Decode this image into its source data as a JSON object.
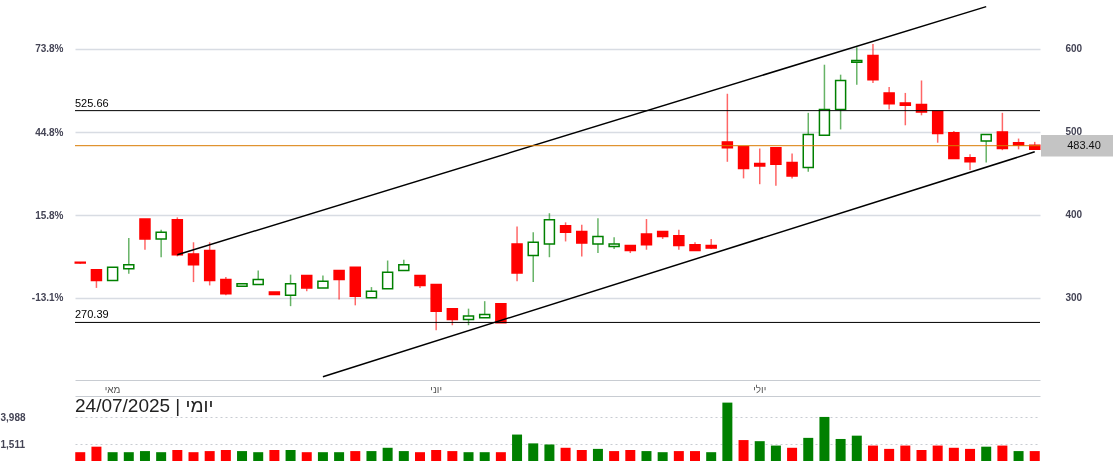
{
  "chart_data": [
    {
      "type": "candlestick",
      "categories": [
        null,
        null,
        "מאי",
        null,
        null,
        null,
        null,
        null,
        null,
        null,
        null,
        null,
        null,
        null,
        null,
        null,
        null,
        null,
        null,
        null,
        null,
        null,
        "יוני",
        null,
        null,
        null,
        null,
        null,
        null,
        null,
        null,
        null,
        null,
        null,
        null,
        null,
        null,
        null,
        null,
        null,
        null,
        null,
        "יולי",
        null,
        null,
        null,
        null,
        null,
        null,
        null,
        null,
        null,
        null,
        null,
        null,
        null,
        null,
        null,
        null,
        null
      ],
      "ohlc": [
        [
          343,
          343,
          341,
          342
        ],
        [
          334,
          334,
          312,
          321
        ],
        [
          321,
          337,
          321,
          337
        ],
        [
          335,
          372,
          329,
          340
        ],
        [
          395,
          395,
          358,
          371
        ],
        [
          371,
          382,
          349,
          379
        ],
        [
          394,
          397,
          350,
          352
        ],
        [
          353,
          367,
          319,
          340
        ],
        [
          357,
          367,
          315,
          321
        ],
        [
          322,
          325,
          303,
          305
        ],
        [
          314,
          317,
          314,
          317
        ],
        [
          316,
          333,
          316,
          322
        ],
        [
          307,
          307,
          304,
          304
        ],
        [
          303,
          328,
          290,
          317
        ],
        [
          327,
          327,
          308,
          312
        ],
        [
          312,
          327,
          312,
          320
        ],
        [
          333,
          333,
          298,
          322
        ],
        [
          337,
          337,
          291,
          302
        ],
        [
          300,
          313,
          300,
          308
        ],
        [
          311,
          345,
          311,
          331
        ],
        [
          333,
          346,
          333,
          340
        ],
        [
          327,
          327,
          312,
          315
        ],
        [
          316,
          316,
          261,
          284
        ],
        [
          287,
          287,
          267,
          274
        ],
        [
          274,
          287,
          267,
          278
        ],
        [
          276,
          296,
          276,
          280
        ],
        [
          293,
          293,
          270,
          270
        ],
        [
          365,
          386,
          320,
          330
        ],
        [
          351,
          379,
          319,
          367
        ],
        [
          365,
          402,
          349,
          394
        ],
        [
          387,
          391,
          368,
          379
        ],
        [
          380,
          388,
          350,
          366
        ],
        [
          365,
          396,
          354,
          374
        ],
        [
          362,
          373,
          359,
          365
        ],
        [
          363,
          363,
          354,
          357
        ],
        [
          377,
          395,
          358,
          364
        ],
        [
          380,
          380,
          371,
          374
        ],
        [
          375,
          382,
          358,
          363
        ],
        [
          364,
          367,
          357,
          357
        ],
        [
          363,
          371,
          359,
          360
        ],
        [
          488,
          546,
          464,
          481
        ],
        [
          482,
          482,
          444,
          456
        ],
        [
          462,
          480,
          437,
          459
        ],
        [
          481,
          481,
          435,
          461
        ],
        [
          463,
          474,
          444,
          447
        ],
        [
          457,
          523,
          452,
          497
        ],
        [
          496,
          581,
          496,
          527
        ],
        [
          527,
          569,
          503,
          562
        ],
        [
          584,
          602,
          557,
          586
        ],
        [
          592,
          606,
          559,
          563
        ],
        [
          547,
          554,
          527,
          534
        ],
        [
          535,
          547,
          508,
          532
        ],
        [
          533,
          562,
          520,
          524
        ],
        [
          525,
          525,
          487,
          498
        ],
        [
          499,
          501,
          468,
          468
        ],
        [
          469,
          473,
          454,
          464
        ],
        [
          489,
          497,
          463,
          497
        ],
        [
          500,
          523,
          478,
          480
        ],
        [
          487,
          492,
          479,
          484
        ],
        [
          484,
          488,
          479,
          479
        ]
      ],
      "colors": [
        "#ff0000",
        "#ff0000",
        "#008000",
        "#008000",
        "#ff0000",
        "#008000",
        "#ff0000",
        "#ff0000",
        "#ff0000",
        "#ff0000",
        "#008000",
        "#008000",
        "#ff0000",
        "#008000",
        "#ff0000",
        "#008000",
        "#ff0000",
        "#ff0000",
        "#008000",
        "#008000",
        "#008000",
        "#ff0000",
        "#ff0000",
        "#ff0000",
        "#008000",
        "#008000",
        "#ff0000",
        "#ff0000",
        "#008000",
        "#008000",
        "#ff0000",
        "#ff0000",
        "#008000",
        "#008000",
        "#ff0000",
        "#ff0000",
        "#ff0000",
        "#ff0000",
        "#ff0000",
        "#ff0000",
        "#ff0000",
        "#ff0000",
        "#ff0000",
        "#ff0000",
        "#ff0000",
        "#008000",
        "#008000",
        "#008000",
        "#008000",
        "#ff0000",
        "#ff0000",
        "#ff0000",
        "#ff0000",
        "#ff0000",
        "#ff0000",
        "#ff0000",
        "#008000",
        "#ff0000",
        "#ff0000",
        "#ff0000"
      ],
      "series": [
        {
          "type": "line",
          "color": "#000000",
          "values": [
            null,
            null,
            null,
            null,
            null,
            null,
            352,
            null,
            null,
            null,
            null,
            null,
            null,
            null,
            null,
            null,
            null,
            null,
            null,
            null,
            null,
            null,
            null,
            null,
            null,
            null,
            null,
            null,
            null,
            null,
            null,
            null,
            null,
            null,
            null,
            null,
            null,
            null,
            null,
            null,
            null,
            null,
            null,
            null,
            null,
            null,
            null,
            null,
            null,
            null,
            null,
            null,
            null,
            null,
            null,
            null,
            651,
            null,
            null,
            null
          ]
        },
        {
          "type": "line",
          "color": "#000000",
          "values": [
            null,
            null,
            null,
            null,
            null,
            null,
            null,
            null,
            null,
            null,
            null,
            null,
            null,
            null,
            null,
            205,
            null,
            null,
            null,
            null,
            null,
            null,
            null,
            null,
            null,
            null,
            null,
            null,
            null,
            null,
            null,
            null,
            null,
            null,
            null,
            null,
            null,
            null,
            null,
            null,
            null,
            null,
            null,
            null,
            null,
            null,
            null,
            null,
            null,
            null,
            null,
            null,
            null,
            null,
            null,
            null,
            null,
            null,
            null,
            476
          ]
        }
      ],
      "ylim": [
        201,
        659
      ],
      "yticks": [
        300,
        400,
        500,
        600
      ],
      "y2lim": [
        -41.8,
        90.9
      ],
      "y2ticks": [
        {
          "value": -13.1,
          "label": "-13.1%"
        },
        {
          "value": 15.8,
          "label": "15.8%"
        },
        {
          "value": 44.8,
          "label": "44.8%"
        },
        {
          "value": 73.8,
          "label": "73.8%"
        }
      ],
      "ref_lines": [
        {
          "axis": "y",
          "value": 525.66,
          "label": "525.66"
        },
        {
          "axis": "y",
          "value": 270.39,
          "label": "270.39"
        },
        {
          "axis": "y",
          "value": 483.4,
          "label": "483.40",
          "color": "#d97a00"
        }
      ],
      "grid": "y"
    },
    {
      "type": "bar",
      "title": "יומי | 24/07/2025",
      "categories": [
        null,
        null,
        null,
        null,
        null,
        null,
        null,
        null,
        null,
        null,
        null,
        null,
        null,
        null,
        null,
        null,
        null,
        null,
        null,
        null,
        null,
        null,
        null,
        null,
        null,
        null,
        null,
        null,
        null,
        null,
        null,
        null,
        null,
        null,
        null,
        null,
        null,
        null,
        null,
        null,
        null,
        null,
        null,
        null,
        null,
        null,
        null,
        null,
        null,
        null,
        null,
        null,
        null,
        null,
        null,
        null,
        null,
        null,
        null,
        null
      ],
      "values": [
        800,
        1300,
        800,
        800,
        900,
        800,
        1000,
        800,
        900,
        1000,
        900,
        800,
        1000,
        1000,
        800,
        800,
        800,
        900,
        900,
        1200,
        900,
        800,
        1000,
        900,
        800,
        800,
        800,
        2400,
        1600,
        1500,
        1200,
        1000,
        1100,
        900,
        1000,
        900,
        800,
        900,
        900,
        800,
        5300,
        1900,
        1800,
        1400,
        1200,
        2100,
        4000,
        2000,
        2300,
        1400,
        1100,
        1400,
        1000,
        1400,
        1200,
        1100,
        1300,
        1400,
        900,
        900
      ],
      "colors": [
        "#ff0000",
        "#ff0000",
        "#008000",
        "#008000",
        "#008000",
        "#008000",
        "#ff0000",
        "#ff0000",
        "#ff0000",
        "#ff0000",
        "#008000",
        "#008000",
        "#ff0000",
        "#008000",
        "#ff0000",
        "#008000",
        "#008000",
        "#ff0000",
        "#008000",
        "#008000",
        "#008000",
        "#ff0000",
        "#ff0000",
        "#ff0000",
        "#008000",
        "#008000",
        "#ff0000",
        "#008000",
        "#008000",
        "#008000",
        "#ff0000",
        "#ff0000",
        "#008000",
        "#ff0000",
        "#ff0000",
        "#008000",
        "#008000",
        "#ff0000",
        "#ff0000",
        "#008000",
        "#008000",
        "#ff0000",
        "#008000",
        "#008000",
        "#ff0000",
        "#008000",
        "#008000",
        "#008000",
        "#008000",
        "#ff0000",
        "#ff0000",
        "#ff0000",
        "#ff0000",
        "#ff0000",
        "#ff0000",
        "#ff0000",
        "#008000",
        "#ff0000",
        "#008000",
        "#ff0000"
      ],
      "ylim": [
        0,
        5900
      ],
      "yticks": [
        {
          "value": 1511,
          "label": "1,511"
        },
        {
          "value": 3988,
          "label": "3,988"
        }
      ],
      "grid": "y"
    }
  ]
}
